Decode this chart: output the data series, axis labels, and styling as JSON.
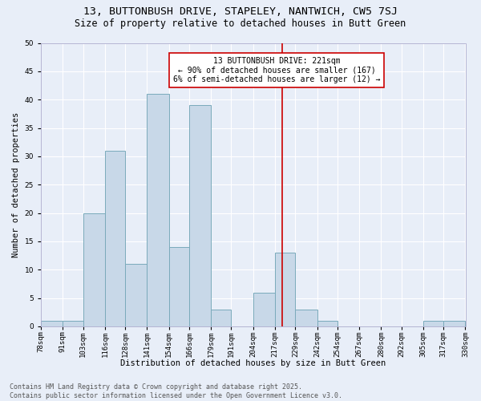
{
  "title1": "13, BUTTONBUSH DRIVE, STAPELEY, NANTWICH, CW5 7SJ",
  "title2": "Size of property relative to detached houses in Butt Green",
  "xlabel": "Distribution of detached houses by size in Butt Green",
  "ylabel": "Number of detached properties",
  "bin_edges": [
    78,
    91,
    103,
    116,
    128,
    141,
    154,
    166,
    179,
    191,
    204,
    217,
    229,
    242,
    254,
    267,
    280,
    292,
    305,
    317,
    330
  ],
  "bin_labels": [
    "78sqm",
    "91sqm",
    "103sqm",
    "116sqm",
    "128sqm",
    "141sqm",
    "154sqm",
    "166sqm",
    "179sqm",
    "191sqm",
    "204sqm",
    "217sqm",
    "229sqm",
    "242sqm",
    "254sqm",
    "267sqm",
    "280sqm",
    "292sqm",
    "305sqm",
    "317sqm",
    "330sqm"
  ],
  "counts": [
    1,
    1,
    20,
    31,
    11,
    41,
    14,
    39,
    3,
    0,
    6,
    13,
    3,
    1,
    0,
    0,
    0,
    0,
    1,
    1
  ],
  "bar_color": "#c8d8e8",
  "bar_edge_color": "#7aaabb",
  "vline_x": 221,
  "vline_color": "#cc0000",
  "annotation_text": "13 BUTTONBUSH DRIVE: 221sqm\n← 90% of detached houses are smaller (167)\n6% of semi-detached houses are larger (12) →",
  "annotation_box_color": "#ffffff",
  "annotation_box_edge": "#cc0000",
  "ylim": [
    0,
    50
  ],
  "yticks": [
    0,
    5,
    10,
    15,
    20,
    25,
    30,
    35,
    40,
    45,
    50
  ],
  "footer1": "Contains HM Land Registry data © Crown copyright and database right 2025.",
  "footer2": "Contains public sector information licensed under the Open Government Licence v3.0.",
  "bg_color": "#e8eef8",
  "title_fontsize": 9.5,
  "subtitle_fontsize": 8.5,
  "axis_label_fontsize": 7.5,
  "tick_fontsize": 6.5,
  "footer_fontsize": 6,
  "annotation_fontsize": 7,
  "ylabel_fontsize": 7.5
}
